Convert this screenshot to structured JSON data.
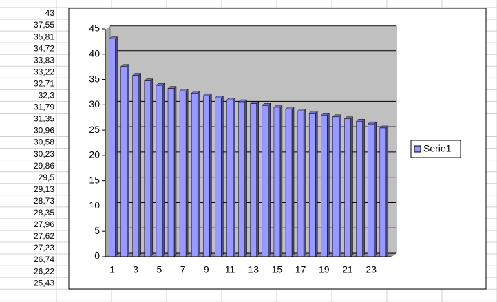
{
  "chart_data": {
    "type": "bar",
    "series": [
      {
        "name": "Serie1",
        "color": "#9999ff",
        "values": [
          43,
          37.55,
          35.81,
          34.72,
          33.83,
          33.22,
          32.71,
          32.3,
          31.79,
          31.35,
          30.96,
          30.58,
          30.23,
          29.86,
          29.5,
          29.13,
          28.73,
          28.35,
          27.96,
          27.62,
          27.23,
          26.74,
          26.22,
          25.43
        ],
        "value_labels": [
          "43",
          "37,55",
          "35,81",
          "34,72",
          "33,83",
          "33,22",
          "32,71",
          "32,3",
          "31,79",
          "31,35",
          "30,96",
          "30,58",
          "30,23",
          "29,86",
          "29,5",
          "29,13",
          "28,73",
          "28,35",
          "27,96",
          "27,62",
          "27,23",
          "26,74",
          "26,22",
          "25,43"
        ]
      }
    ],
    "categories": [
      1,
      null,
      3,
      null,
      5,
      null,
      7,
      null,
      9,
      null,
      11,
      null,
      13,
      null,
      15,
      null,
      17,
      null,
      19,
      null,
      21,
      null,
      23,
      null
    ],
    "ylim": [
      0,
      45
    ],
    "yticks": [
      0,
      5,
      10,
      15,
      20,
      25,
      30,
      35,
      40,
      45
    ],
    "grid": true,
    "legend": "right"
  }
}
